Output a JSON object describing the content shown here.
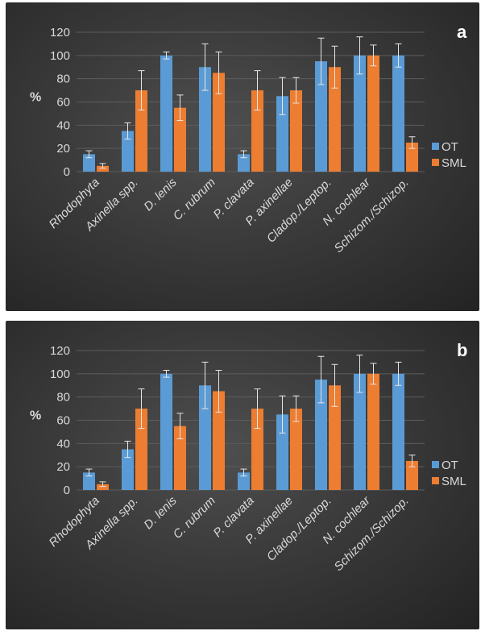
{
  "colors": {
    "ot": "#5B9BD5",
    "sml": "#ED7D31",
    "text": "#d9d9d9",
    "grid": "#5d5d5d"
  },
  "chart_data": [
    {
      "type": "bar",
      "panel_label": "a",
      "ylabel": "%",
      "ylim": [
        0,
        120
      ],
      "yticks": [
        0,
        20,
        40,
        60,
        80,
        100,
        120
      ],
      "legend_position": "right",
      "categories": [
        "Rhodophyta",
        "Axinella spp.",
        "D. lenis",
        "C. rubrum",
        "P. clavata",
        "P. axinellae",
        "Cladop./Leptop.",
        "N. cochlear",
        "Schizom./Schizop."
      ],
      "series": [
        {
          "name": "OT",
          "values": [
            15,
            35,
            100,
            90,
            15,
            65,
            95,
            100,
            100
          ],
          "errors": [
            3,
            7,
            3,
            20,
            3,
            16,
            20,
            16,
            10
          ]
        },
        {
          "name": "SML",
          "values": [
            5,
            70,
            55,
            85,
            70,
            70,
            90,
            100,
            25
          ],
          "errors": [
            2,
            17,
            11,
            18,
            17,
            11,
            18,
            9,
            5
          ]
        }
      ]
    },
    {
      "type": "bar",
      "panel_label": "b",
      "ylabel": "%",
      "ylim": [
        0,
        120
      ],
      "yticks": [
        0,
        20,
        40,
        60,
        80,
        100,
        120
      ],
      "legend_position": "right",
      "categories": [
        "Rhodophyta",
        "Axinella spp.",
        "D. lenis",
        "C. rubrum",
        "P. clavata",
        "P. axinellae",
        "Cladop./Leptop.",
        "N. cochlear",
        "Schizom./Schizop."
      ],
      "series": [
        {
          "name": "OT",
          "values": [
            15,
            35,
            100,
            90,
            15,
            65,
            95,
            100,
            100
          ],
          "errors": [
            3,
            7,
            3,
            20,
            3,
            16,
            20,
            16,
            10
          ]
        },
        {
          "name": "SML",
          "values": [
            5,
            70,
            55,
            85,
            70,
            70,
            90,
            100,
            25
          ],
          "errors": [
            2,
            17,
            11,
            18,
            17,
            11,
            18,
            9,
            5
          ]
        }
      ]
    }
  ]
}
